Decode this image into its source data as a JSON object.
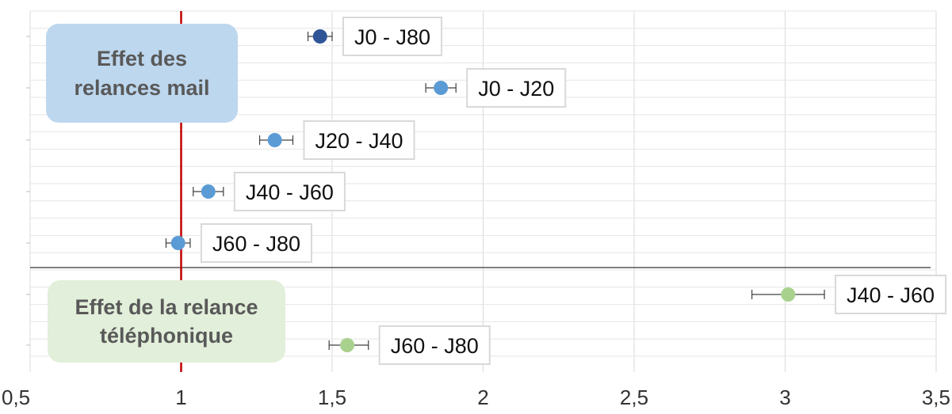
{
  "chart_data": {
    "type": "scatter",
    "orientation": "horizontal-forest-plot",
    "xlim": [
      0.5,
      3.5
    ],
    "x_ticks": [
      "0,5",
      "1",
      "1,5",
      "2",
      "2,5",
      "3",
      "3,5"
    ],
    "x_tick_values": [
      0.5,
      1,
      1.5,
      2,
      2.5,
      3,
      3.5
    ],
    "reference_line_x": 1,
    "reference_line_color": "#c00000",
    "grid": true,
    "groups": [
      {
        "label_lines": [
          "Effet des",
          "relances mail"
        ],
        "box_color": "#bdd7ee",
        "points": [
          {
            "label": "J0 - J80",
            "value": 1.46,
            "ci": [
              1.42,
              1.5
            ],
            "color": "#2f5597"
          },
          {
            "label": "J0 - J20",
            "value": 1.86,
            "ci": [
              1.81,
              1.91
            ],
            "color": "#5b9bd5"
          },
          {
            "label": "J20 - J40",
            "value": 1.31,
            "ci": [
              1.26,
              1.37
            ],
            "color": "#5b9bd5"
          },
          {
            "label": "J40 - J60",
            "value": 1.09,
            "ci": [
              1.04,
              1.14
            ],
            "color": "#5b9bd5"
          },
          {
            "label": "J60 - J80",
            "value": 0.99,
            "ci": [
              0.95,
              1.03
            ],
            "color": "#5b9bd5"
          }
        ]
      },
      {
        "label_lines": [
          "Effet de la relance",
          "téléphonique"
        ],
        "box_color": "#e2efda",
        "points": [
          {
            "label": "J40 - J60",
            "value": 3.01,
            "ci": [
              2.89,
              3.13
            ],
            "color": "#a9d18e"
          },
          {
            "label": "J60 - J80",
            "value": 1.55,
            "ci": [
              1.49,
              1.62
            ],
            "color": "#a9d18e"
          }
        ]
      }
    ]
  }
}
